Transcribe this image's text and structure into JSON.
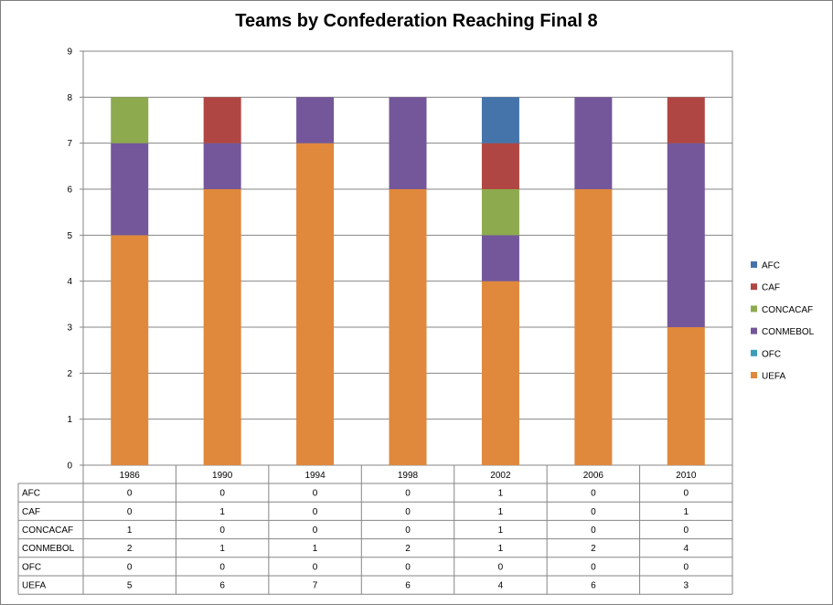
{
  "chart_data": {
    "type": "bar",
    "stacked": true,
    "title": "Teams by Confederation Reaching Final 8",
    "categories": [
      "1986",
      "1990",
      "1994",
      "1998",
      "2002",
      "2006",
      "2010"
    ],
    "series": [
      {
        "name": "UEFA",
        "color": "#E0883C",
        "values": [
          5,
          6,
          7,
          6,
          4,
          6,
          3
        ]
      },
      {
        "name": "OFC",
        "color": "#3A9DBA",
        "values": [
          0,
          0,
          0,
          0,
          0,
          0,
          0
        ]
      },
      {
        "name": "CONMEBOL",
        "color": "#74579A",
        "values": [
          2,
          1,
          1,
          2,
          1,
          2,
          4
        ]
      },
      {
        "name": "CONCACAF",
        "color": "#8DAA4E",
        "values": [
          1,
          0,
          0,
          0,
          1,
          0,
          0
        ]
      },
      {
        "name": "CAF",
        "color": "#B04643",
        "values": [
          0,
          1,
          0,
          0,
          1,
          0,
          1
        ]
      },
      {
        "name": "AFC",
        "color": "#4474AA",
        "values": [
          0,
          0,
          0,
          0,
          1,
          0,
          0
        ]
      }
    ],
    "legend_order": [
      "AFC",
      "CAF",
      "CONCACAF",
      "CONMEBOL",
      "OFC",
      "UEFA"
    ],
    "table_order": [
      "AFC",
      "CAF",
      "CONCACAF",
      "CONMEBOL",
      "OFC",
      "UEFA"
    ],
    "yticks": [
      "0",
      "1",
      "2",
      "3",
      "4",
      "5",
      "6",
      "7",
      "8",
      "9"
    ],
    "ylim": [
      0,
      9
    ],
    "grid": true,
    "legend_position": "right",
    "data_table": true
  }
}
